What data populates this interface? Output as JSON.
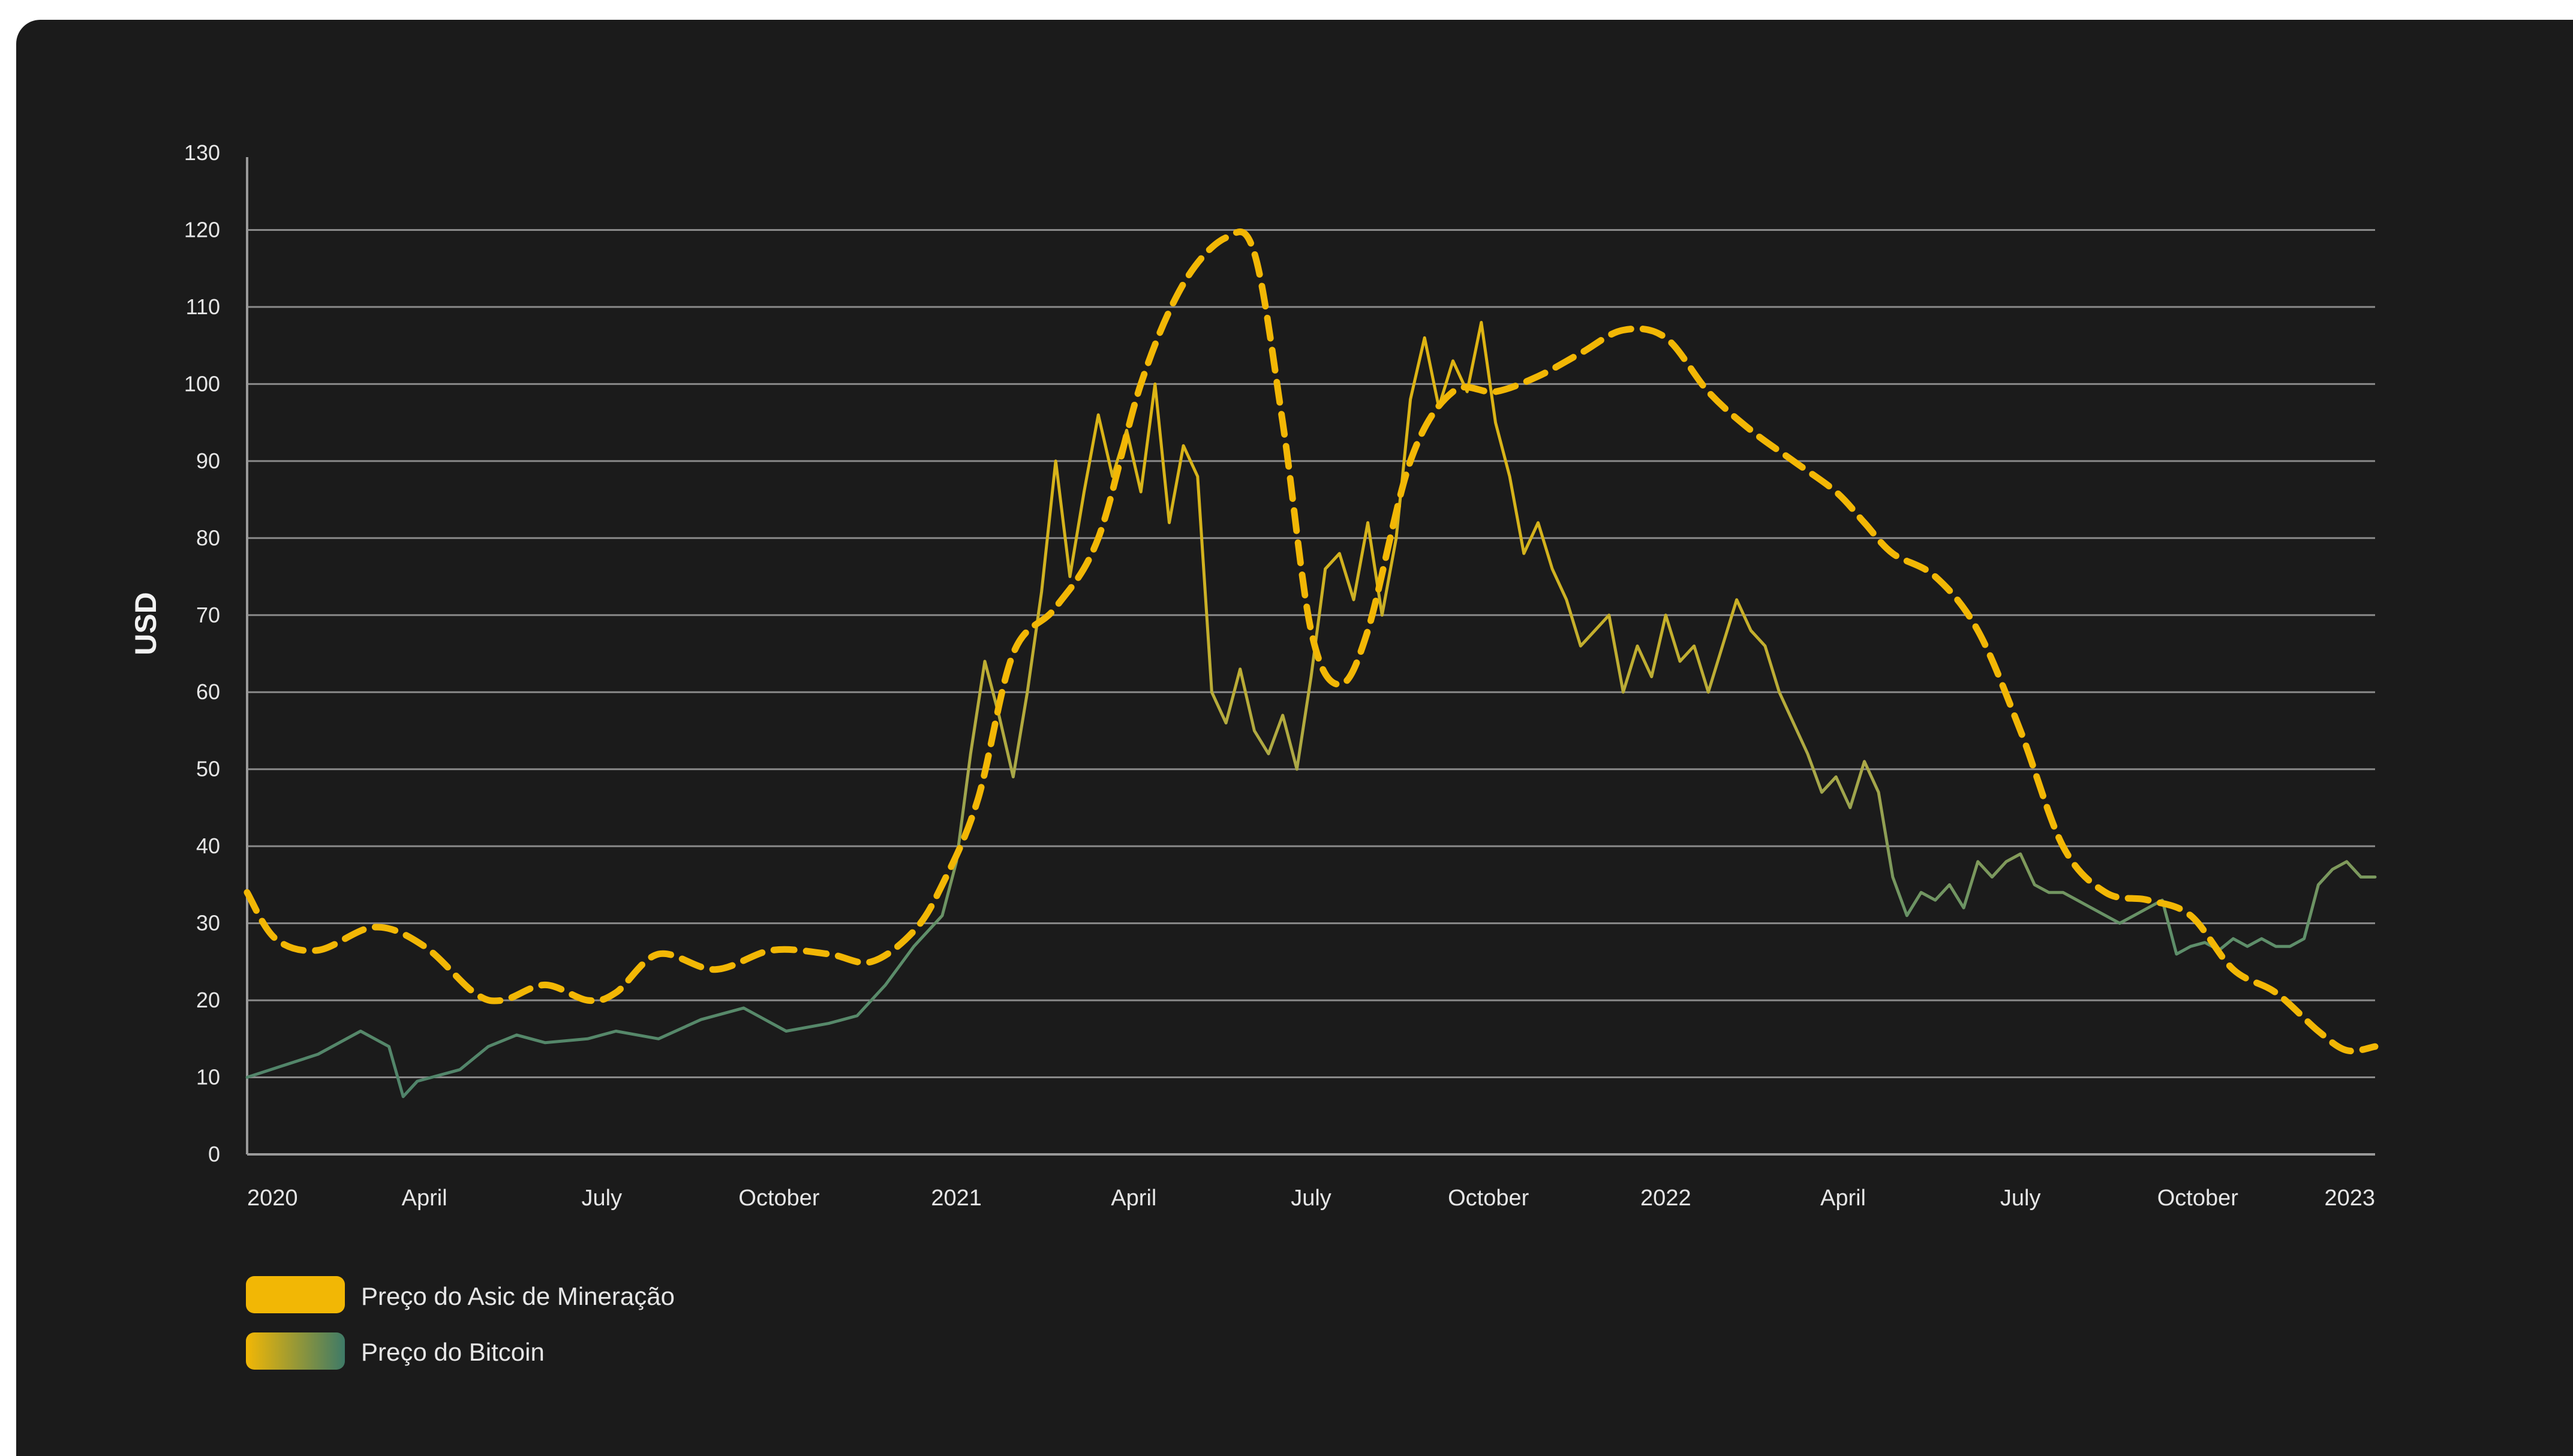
{
  "colors": {
    "background": "#1b1b1b",
    "asic": "#f2b705",
    "bitcoin_start": "#f2b705",
    "bitcoin_end": "#3e7a67"
  },
  "chart_data": {
    "type": "line",
    "title": "",
    "ylabel": "USD",
    "xlabel": "",
    "ylim": [
      0,
      130
    ],
    "xlim": [
      2020.0,
      2023.0
    ],
    "y_ticks": [
      0,
      10,
      20,
      30,
      40,
      50,
      60,
      70,
      80,
      90,
      100,
      110,
      120,
      130
    ],
    "x_ticks": [
      {
        "x": 2020.0,
        "label": "2020"
      },
      {
        "x": 2020.25,
        "label": "April"
      },
      {
        "x": 2020.5,
        "label": "July"
      },
      {
        "x": 2020.75,
        "label": "October"
      },
      {
        "x": 2021.0,
        "label": "2021"
      },
      {
        "x": 2021.25,
        "label": "April"
      },
      {
        "x": 2021.5,
        "label": "July"
      },
      {
        "x": 2021.75,
        "label": "October"
      },
      {
        "x": 2022.0,
        "label": "2022"
      },
      {
        "x": 2022.25,
        "label": "April"
      },
      {
        "x": 2022.5,
        "label": "July"
      },
      {
        "x": 2022.75,
        "label": "October"
      },
      {
        "x": 2023.0,
        "label": "2023"
      }
    ],
    "grid": "horizontal",
    "legend_position": "bottom-left",
    "series": [
      {
        "name": "Preço do Asic de Mineração",
        "style": "dashed",
        "x": [
          2020.0,
          2020.04,
          2020.1,
          2020.18,
          2020.25,
          2020.32,
          2020.36,
          2020.42,
          2020.48,
          2020.52,
          2020.58,
          2020.66,
          2020.74,
          2020.82,
          2020.88,
          2020.94,
          2020.98,
          2021.03,
          2021.08,
          2021.14,
          2021.2,
          2021.26,
          2021.32,
          2021.38,
          2021.42,
          2021.46,
          2021.5,
          2021.54,
          2021.58,
          2021.64,
          2021.7,
          2021.76,
          2021.82,
          2021.88,
          2021.94,
          2022.0,
          2022.06,
          2022.12,
          2022.18,
          2022.24,
          2022.28,
          2022.32,
          2022.38,
          2022.44,
          2022.5,
          2022.56,
          2022.62,
          2022.68,
          2022.74,
          2022.8,
          2022.86,
          2022.92,
          2022.96,
          2023.0
        ],
        "y": [
          34,
          28,
          26.5,
          29.5,
          27,
          21,
          20,
          22,
          20,
          21,
          26,
          24,
          26.5,
          26,
          25,
          29,
          35,
          46,
          65,
          71,
          80,
          100,
          113,
          119,
          117,
          95,
          68,
          61,
          68,
          90,
          99,
          99,
          101,
          104,
          107,
          106,
          99,
          94,
          90,
          86,
          82,
          78,
          75,
          68,
          55,
          40,
          34,
          33,
          31,
          24,
          21,
          16,
          13.5,
          14
        ]
      },
      {
        "name": "Preço do Bitcoin",
        "style": "solid",
        "x": [
          2020.0,
          2020.05,
          2020.1,
          2020.16,
          2020.2,
          2020.22,
          2020.24,
          2020.3,
          2020.34,
          2020.38,
          2020.42,
          2020.48,
          2020.52,
          2020.58,
          2020.64,
          2020.7,
          2020.76,
          2020.82,
          2020.86,
          2020.9,
          2020.94,
          2020.98,
          2021.0,
          2021.02,
          2021.04,
          2021.06,
          2021.08,
          2021.1,
          2021.12,
          2021.14,
          2021.16,
          2021.18,
          2021.2,
          2021.22,
          2021.24,
          2021.26,
          2021.28,
          2021.3,
          2021.32,
          2021.34,
          2021.36,
          2021.38,
          2021.4,
          2021.42,
          2021.44,
          2021.46,
          2021.48,
          2021.5,
          2021.52,
          2021.54,
          2021.56,
          2021.58,
          2021.6,
          2021.62,
          2021.64,
          2021.66,
          2021.68,
          2021.7,
          2021.72,
          2021.74,
          2021.76,
          2021.78,
          2021.8,
          2021.82,
          2021.84,
          2021.86,
          2021.88,
          2021.9,
          2021.92,
          2021.94,
          2021.96,
          2021.98,
          2022.0,
          2022.02,
          2022.04,
          2022.06,
          2022.08,
          2022.1,
          2022.12,
          2022.14,
          2022.16,
          2022.18,
          2022.2,
          2022.22,
          2022.24,
          2022.26,
          2022.28,
          2022.3,
          2022.32,
          2022.34,
          2022.36,
          2022.38,
          2022.4,
          2022.42,
          2022.44,
          2022.46,
          2022.48,
          2022.5,
          2022.52,
          2022.54,
          2022.56,
          2022.58,
          2022.6,
          2022.62,
          2022.64,
          2022.66,
          2022.68,
          2022.7,
          2022.72,
          2022.74,
          2022.76,
          2022.78,
          2022.8,
          2022.82,
          2022.84,
          2022.86,
          2022.88,
          2022.9,
          2022.92,
          2022.94,
          2022.96,
          2022.98,
          2023.0
        ],
        "y": [
          10,
          11.5,
          13,
          16,
          14,
          7.5,
          9.5,
          11,
          14,
          15.5,
          14.5,
          15,
          16,
          15,
          17.5,
          19,
          16,
          17,
          18,
          22,
          27,
          31,
          38,
          52,
          64,
          57,
          49,
          60,
          73,
          90,
          75,
          86,
          96,
          88,
          94,
          86,
          100,
          82,
          92,
          88,
          60,
          56,
          63,
          55,
          52,
          57,
          50,
          62,
          76,
          78,
          72,
          82,
          70,
          80,
          98,
          106,
          97,
          103,
          99,
          108,
          95,
          88,
          78,
          82,
          76,
          72,
          66,
          68,
          70,
          60,
          66,
          62,
          70,
          64,
          66,
          60,
          66,
          72,
          68,
          66,
          60,
          56,
          52,
          47,
          49,
          45,
          51,
          47,
          36,
          31,
          34,
          33,
          35,
          32,
          38,
          36,
          38,
          39,
          35,
          34,
          34,
          33,
          32,
          31,
          30,
          31,
          32,
          33,
          26,
          27,
          27.5,
          26.5,
          28,
          27,
          28,
          27,
          27,
          28,
          35,
          37,
          38,
          36,
          36
        ]
      }
    ]
  }
}
